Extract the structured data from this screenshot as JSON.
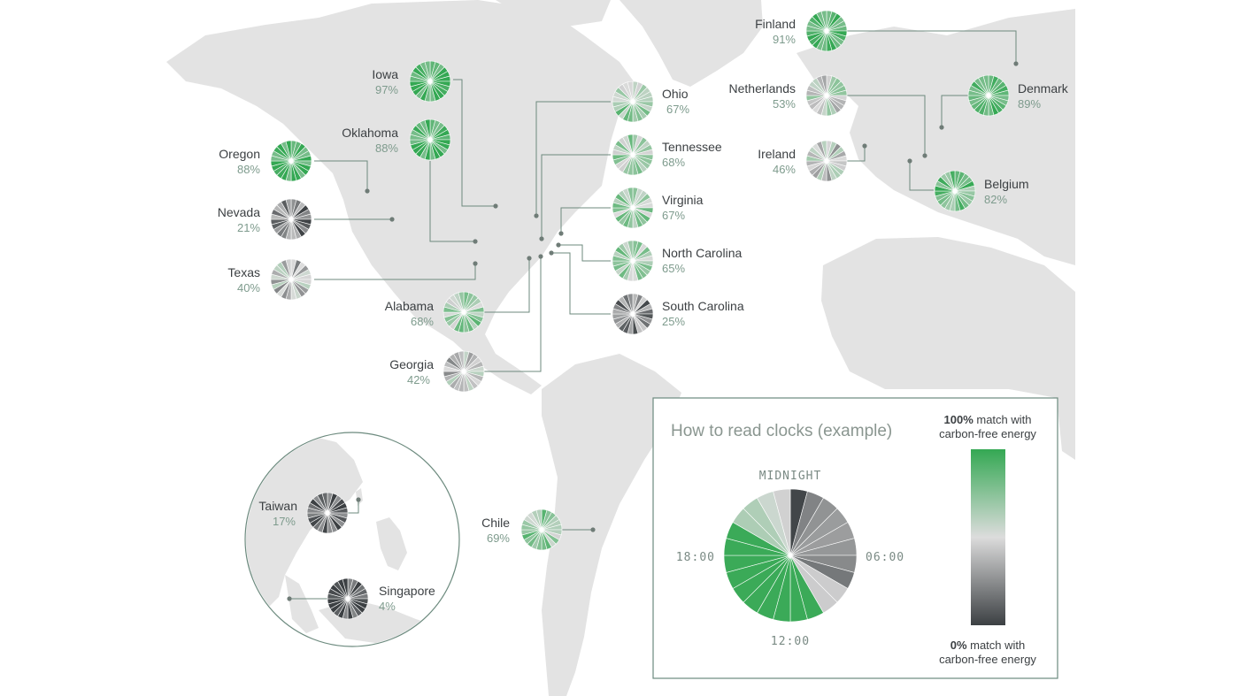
{
  "regions": [
    {
      "id": "finland",
      "name": "Finland",
      "pct": "91%",
      "value": 91
    },
    {
      "id": "iowa",
      "name": "Iowa",
      "pct": "97%",
      "value": 97
    },
    {
      "id": "ohio",
      "name": "Ohio",
      "pct": "67%",
      "value": 67
    },
    {
      "id": "netherlands",
      "name": "Netherlands",
      "pct": "53%",
      "value": 53
    },
    {
      "id": "denmark",
      "name": "Denmark",
      "pct": "89%",
      "value": 89
    },
    {
      "id": "oregon",
      "name": "Oregon",
      "pct": "88%",
      "value": 88
    },
    {
      "id": "oklahoma",
      "name": "Oklahoma",
      "pct": "88%",
      "value": 88
    },
    {
      "id": "tennessee",
      "name": "Tennessee",
      "pct": "68%",
      "value": 68
    },
    {
      "id": "ireland",
      "name": "Ireland",
      "pct": "46%",
      "value": 46
    },
    {
      "id": "belgium",
      "name": "Belgium",
      "pct": "82%",
      "value": 82
    },
    {
      "id": "nevada",
      "name": "Nevada",
      "pct": "21%",
      "value": 21
    },
    {
      "id": "virginia",
      "name": "Virginia",
      "pct": "67%",
      "value": 67
    },
    {
      "id": "texas",
      "name": "Texas",
      "pct": "40%",
      "value": 40
    },
    {
      "id": "north-carolina",
      "name": "North Carolina",
      "pct": "65%",
      "value": 65
    },
    {
      "id": "alabama",
      "name": "Alabama",
      "pct": "68%",
      "value": 68
    },
    {
      "id": "south-carolina",
      "name": "South Carolina",
      "pct": "25%",
      "value": 25
    },
    {
      "id": "georgia",
      "name": "Georgia",
      "pct": "42%",
      "value": 42
    },
    {
      "id": "taiwan",
      "name": "Taiwan",
      "pct": "17%",
      "value": 17
    },
    {
      "id": "singapore",
      "name": "Singapore",
      "pct": "4%",
      "value": 4
    },
    {
      "id": "chile",
      "name": "Chile",
      "pct": "69%",
      "value": 69
    }
  ],
  "legend": {
    "title": "How to read clocks (example)",
    "midnight": "MIDNIGHT",
    "h6": "06:00",
    "h12": "12:00",
    "h18": "18:00",
    "top_bold": "100%",
    "top_rest": " match with",
    "top_line2": "carbon-free energy",
    "bottom_bold": "0%",
    "bottom_rest": " match with",
    "bottom_line2": "carbon-free energy"
  },
  "colors": {
    "clean": "#34a853",
    "neutral": "#dcdcdc",
    "dirty": "#3c4043",
    "land": "#e3e3e3",
    "leader": "#6c8a7e"
  }
}
